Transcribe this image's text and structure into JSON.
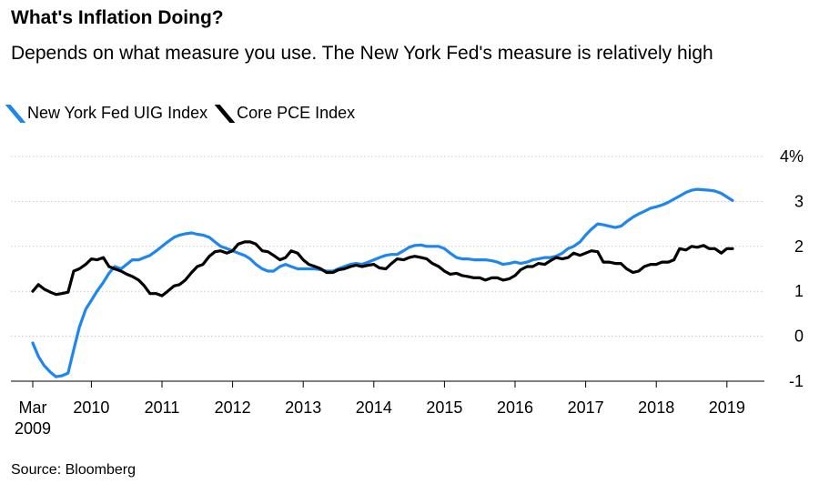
{
  "header": {
    "title": "What's Inflation Doing?",
    "subtitle": "Depends on what measure you use. The New York Fed's measure is relatively high"
  },
  "legend": {
    "items": [
      {
        "label": "New York Fed UIG Index",
        "color": "#1f86f0"
      },
      {
        "label": "Core PCE Index",
        "color": "#000000"
      }
    ]
  },
  "source": "Source: Bloomberg",
  "chart_data": {
    "type": "line",
    "title": "What's Inflation Doing?",
    "subtitle": "Depends on what measure you use. The New York Fed's measure is relatively high",
    "xlabel": "",
    "ylabel": "",
    "x_ticks": [
      {
        "value": 2009.17,
        "label": "Mar",
        "sublabel": "2009"
      },
      {
        "value": 2010,
        "label": "2010"
      },
      {
        "value": 2011,
        "label": "2011"
      },
      {
        "value": 2012,
        "label": "2012"
      },
      {
        "value": 2013,
        "label": "2013"
      },
      {
        "value": 2014,
        "label": "2014"
      },
      {
        "value": 2015,
        "label": "2015"
      },
      {
        "value": 2016,
        "label": "2016"
      },
      {
        "value": 2017,
        "label": "2017"
      },
      {
        "value": 2018,
        "label": "2018"
      },
      {
        "value": 2019,
        "label": "2019"
      }
    ],
    "y_ticks": [
      {
        "value": 4,
        "label": "4%"
      },
      {
        "value": 3,
        "label": "3"
      },
      {
        "value": 2,
        "label": "2"
      },
      {
        "value": 1,
        "label": "1"
      },
      {
        "value": 0,
        "label": "0"
      },
      {
        "value": -1,
        "label": "-1"
      }
    ],
    "xlim": [
      2009.17,
      2019.17
    ],
    "ylim": [
      -1,
      4
    ],
    "grid": true,
    "legend_position": "top-left",
    "series": [
      {
        "name": "New York Fed UIG Index",
        "color": "#1f86f0",
        "points": [
          [
            2009.17,
            -0.15
          ],
          [
            2009.25,
            -0.45
          ],
          [
            2009.33,
            -0.65
          ],
          [
            2009.42,
            -0.8
          ],
          [
            2009.5,
            -0.9
          ],
          [
            2009.58,
            -0.88
          ],
          [
            2009.67,
            -0.82
          ],
          [
            2009.75,
            -0.3
          ],
          [
            2009.83,
            0.2
          ],
          [
            2009.92,
            0.6
          ],
          [
            2010.0,
            0.8
          ],
          [
            2010.08,
            1.0
          ],
          [
            2010.17,
            1.2
          ],
          [
            2010.25,
            1.4
          ],
          [
            2010.33,
            1.55
          ],
          [
            2010.42,
            1.5
          ],
          [
            2010.5,
            1.6
          ],
          [
            2010.58,
            1.7
          ],
          [
            2010.67,
            1.7
          ],
          [
            2010.75,
            1.75
          ],
          [
            2010.83,
            1.8
          ],
          [
            2010.92,
            1.9
          ],
          [
            2011.0,
            2.0
          ],
          [
            2011.08,
            2.1
          ],
          [
            2011.17,
            2.2
          ],
          [
            2011.25,
            2.25
          ],
          [
            2011.33,
            2.28
          ],
          [
            2011.42,
            2.3
          ],
          [
            2011.5,
            2.27
          ],
          [
            2011.58,
            2.25
          ],
          [
            2011.67,
            2.2
          ],
          [
            2011.75,
            2.1
          ],
          [
            2011.83,
            2.0
          ],
          [
            2011.92,
            1.95
          ],
          [
            2012.0,
            1.9
          ],
          [
            2012.08,
            1.85
          ],
          [
            2012.17,
            1.8
          ],
          [
            2012.25,
            1.72
          ],
          [
            2012.33,
            1.6
          ],
          [
            2012.42,
            1.5
          ],
          [
            2012.5,
            1.45
          ],
          [
            2012.58,
            1.45
          ],
          [
            2012.67,
            1.55
          ],
          [
            2012.75,
            1.6
          ],
          [
            2012.83,
            1.55
          ],
          [
            2012.92,
            1.5
          ],
          [
            2013.0,
            1.5
          ],
          [
            2013.08,
            1.5
          ],
          [
            2013.17,
            1.5
          ],
          [
            2013.25,
            1.48
          ],
          [
            2013.33,
            1.45
          ],
          [
            2013.42,
            1.45
          ],
          [
            2013.5,
            1.5
          ],
          [
            2013.58,
            1.55
          ],
          [
            2013.67,
            1.6
          ],
          [
            2013.75,
            1.62
          ],
          [
            2013.83,
            1.6
          ],
          [
            2013.92,
            1.65
          ],
          [
            2014.0,
            1.7
          ],
          [
            2014.08,
            1.75
          ],
          [
            2014.17,
            1.8
          ],
          [
            2014.25,
            1.82
          ],
          [
            2014.33,
            1.82
          ],
          [
            2014.42,
            1.9
          ],
          [
            2014.5,
            1.98
          ],
          [
            2014.58,
            2.02
          ],
          [
            2014.67,
            2.03
          ],
          [
            2014.75,
            2.0
          ],
          [
            2014.83,
            2.0
          ],
          [
            2014.92,
            2.0
          ],
          [
            2015.0,
            1.95
          ],
          [
            2015.08,
            1.85
          ],
          [
            2015.17,
            1.75
          ],
          [
            2015.25,
            1.72
          ],
          [
            2015.33,
            1.72
          ],
          [
            2015.42,
            1.7
          ],
          [
            2015.5,
            1.7
          ],
          [
            2015.58,
            1.7
          ],
          [
            2015.67,
            1.68
          ],
          [
            2015.75,
            1.65
          ],
          [
            2015.83,
            1.6
          ],
          [
            2015.92,
            1.62
          ],
          [
            2016.0,
            1.65
          ],
          [
            2016.08,
            1.62
          ],
          [
            2016.17,
            1.65
          ],
          [
            2016.25,
            1.7
          ],
          [
            2016.33,
            1.72
          ],
          [
            2016.42,
            1.75
          ],
          [
            2016.5,
            1.75
          ],
          [
            2016.58,
            1.78
          ],
          [
            2016.67,
            1.85
          ],
          [
            2016.75,
            1.95
          ],
          [
            2016.83,
            2.0
          ],
          [
            2016.92,
            2.1
          ],
          [
            2017.0,
            2.25
          ],
          [
            2017.08,
            2.38
          ],
          [
            2017.17,
            2.5
          ],
          [
            2017.25,
            2.48
          ],
          [
            2017.33,
            2.45
          ],
          [
            2017.42,
            2.42
          ],
          [
            2017.5,
            2.45
          ],
          [
            2017.58,
            2.55
          ],
          [
            2017.67,
            2.65
          ],
          [
            2017.75,
            2.72
          ],
          [
            2017.83,
            2.78
          ],
          [
            2017.92,
            2.85
          ],
          [
            2018.0,
            2.88
          ],
          [
            2018.08,
            2.92
          ],
          [
            2018.17,
            2.98
          ],
          [
            2018.25,
            3.05
          ],
          [
            2018.33,
            3.12
          ],
          [
            2018.42,
            3.2
          ],
          [
            2018.5,
            3.25
          ],
          [
            2018.58,
            3.27
          ],
          [
            2018.67,
            3.26
          ],
          [
            2018.75,
            3.25
          ],
          [
            2018.83,
            3.23
          ],
          [
            2018.92,
            3.18
          ],
          [
            2019.0,
            3.1
          ],
          [
            2019.08,
            3.02
          ]
        ]
      },
      {
        "name": "Core PCE Index",
        "color": "#000000",
        "points": [
          [
            2009.17,
            1.0
          ],
          [
            2009.25,
            1.15
          ],
          [
            2009.33,
            1.05
          ],
          [
            2009.42,
            0.98
          ],
          [
            2009.5,
            0.93
          ],
          [
            2009.58,
            0.95
          ],
          [
            2009.67,
            0.98
          ],
          [
            2009.75,
            1.45
          ],
          [
            2009.83,
            1.5
          ],
          [
            2009.92,
            1.6
          ],
          [
            2010.0,
            1.72
          ],
          [
            2010.08,
            1.7
          ],
          [
            2010.17,
            1.75
          ],
          [
            2010.25,
            1.55
          ],
          [
            2010.33,
            1.5
          ],
          [
            2010.42,
            1.45
          ],
          [
            2010.5,
            1.38
          ],
          [
            2010.58,
            1.33
          ],
          [
            2010.67,
            1.25
          ],
          [
            2010.75,
            1.12
          ],
          [
            2010.83,
            0.95
          ],
          [
            2010.92,
            0.95
          ],
          [
            2011.0,
            0.9
          ],
          [
            2011.08,
            1.0
          ],
          [
            2011.17,
            1.12
          ],
          [
            2011.25,
            1.15
          ],
          [
            2011.33,
            1.25
          ],
          [
            2011.42,
            1.42
          ],
          [
            2011.5,
            1.55
          ],
          [
            2011.58,
            1.6
          ],
          [
            2011.67,
            1.78
          ],
          [
            2011.75,
            1.88
          ],
          [
            2011.83,
            1.9
          ],
          [
            2011.92,
            1.85
          ],
          [
            2012.0,
            1.9
          ],
          [
            2012.08,
            2.05
          ],
          [
            2012.17,
            2.1
          ],
          [
            2012.25,
            2.1
          ],
          [
            2012.33,
            2.05
          ],
          [
            2012.42,
            1.9
          ],
          [
            2012.5,
            1.88
          ],
          [
            2012.58,
            1.8
          ],
          [
            2012.67,
            1.7
          ],
          [
            2012.75,
            1.75
          ],
          [
            2012.83,
            1.9
          ],
          [
            2012.92,
            1.85
          ],
          [
            2013.0,
            1.7
          ],
          [
            2013.08,
            1.6
          ],
          [
            2013.17,
            1.55
          ],
          [
            2013.25,
            1.5
          ],
          [
            2013.33,
            1.42
          ],
          [
            2013.42,
            1.42
          ],
          [
            2013.5,
            1.48
          ],
          [
            2013.58,
            1.5
          ],
          [
            2013.67,
            1.55
          ],
          [
            2013.75,
            1.58
          ],
          [
            2013.83,
            1.55
          ],
          [
            2013.92,
            1.58
          ],
          [
            2014.0,
            1.6
          ],
          [
            2014.08,
            1.52
          ],
          [
            2014.17,
            1.5
          ],
          [
            2014.25,
            1.62
          ],
          [
            2014.33,
            1.72
          ],
          [
            2014.42,
            1.7
          ],
          [
            2014.5,
            1.75
          ],
          [
            2014.58,
            1.78
          ],
          [
            2014.67,
            1.75
          ],
          [
            2014.75,
            1.72
          ],
          [
            2014.83,
            1.62
          ],
          [
            2014.92,
            1.55
          ],
          [
            2015.0,
            1.45
          ],
          [
            2015.08,
            1.38
          ],
          [
            2015.17,
            1.4
          ],
          [
            2015.25,
            1.35
          ],
          [
            2015.33,
            1.33
          ],
          [
            2015.42,
            1.3
          ],
          [
            2015.5,
            1.3
          ],
          [
            2015.58,
            1.25
          ],
          [
            2015.67,
            1.3
          ],
          [
            2015.75,
            1.3
          ],
          [
            2015.83,
            1.25
          ],
          [
            2015.92,
            1.28
          ],
          [
            2016.0,
            1.35
          ],
          [
            2016.08,
            1.48
          ],
          [
            2016.17,
            1.55
          ],
          [
            2016.25,
            1.55
          ],
          [
            2016.33,
            1.62
          ],
          [
            2016.42,
            1.6
          ],
          [
            2016.5,
            1.68
          ],
          [
            2016.58,
            1.75
          ],
          [
            2016.67,
            1.72
          ],
          [
            2016.75,
            1.75
          ],
          [
            2016.83,
            1.85
          ],
          [
            2016.92,
            1.8
          ],
          [
            2017.0,
            1.85
          ],
          [
            2017.08,
            1.9
          ],
          [
            2017.17,
            1.88
          ],
          [
            2017.25,
            1.65
          ],
          [
            2017.33,
            1.65
          ],
          [
            2017.42,
            1.62
          ],
          [
            2017.5,
            1.62
          ],
          [
            2017.58,
            1.5
          ],
          [
            2017.67,
            1.42
          ],
          [
            2017.75,
            1.45
          ],
          [
            2017.83,
            1.55
          ],
          [
            2017.92,
            1.6
          ],
          [
            2018.0,
            1.6
          ],
          [
            2018.08,
            1.65
          ],
          [
            2018.17,
            1.65
          ],
          [
            2018.25,
            1.7
          ],
          [
            2018.33,
            1.95
          ],
          [
            2018.42,
            1.92
          ],
          [
            2018.5,
            2.0
          ],
          [
            2018.58,
            1.98
          ],
          [
            2018.67,
            2.02
          ],
          [
            2018.75,
            1.95
          ],
          [
            2018.83,
            1.95
          ],
          [
            2018.92,
            1.85
          ],
          [
            2019.0,
            1.95
          ],
          [
            2019.08,
            1.95
          ]
        ]
      }
    ]
  }
}
